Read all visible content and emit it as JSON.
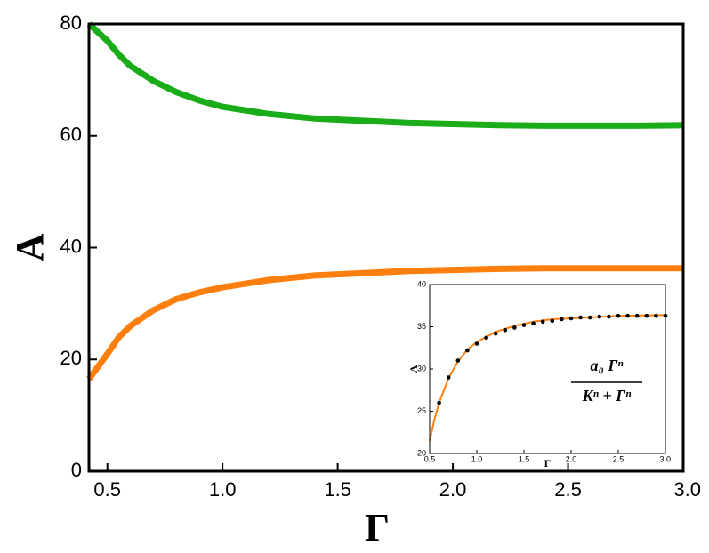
{
  "chart_data": [
    {
      "type": "line",
      "xlabel": "Γ",
      "ylabel": "A",
      "xlim": [
        0.42,
        3.0
      ],
      "ylim": [
        0,
        80
      ],
      "xticks": [
        0.5,
        {
          "value": 1,
          "label": "1.0"
        },
        1.5,
        {
          "value": 2,
          "label": "2.0"
        },
        2.5,
        {
          "value": 3,
          "label": "3.0"
        }
      ],
      "yticks": [
        0,
        20,
        40,
        60,
        80
      ],
      "series": [
        {
          "color": "#1aad19",
          "x": [
            0.42,
            0.5,
            0.55,
            0.6,
            0.7,
            0.8,
            0.9,
            1.0,
            1.2,
            1.4,
            1.6,
            1.8,
            2.0,
            2.2,
            2.4,
            2.6,
            2.8,
            3.0
          ],
          "values": [
            80,
            77,
            74.5,
            72.5,
            69.8,
            67.8,
            66.3,
            65.2,
            63.9,
            63.1,
            62.7,
            62.3,
            62.1,
            61.9,
            61.8,
            61.8,
            61.8,
            61.9
          ]
        },
        {
          "color": "#ff7f0e",
          "x": [
            0.42,
            0.5,
            0.55,
            0.6,
            0.7,
            0.8,
            0.9,
            1.0,
            1.2,
            1.4,
            1.6,
            1.8,
            2.0,
            2.2,
            2.4,
            2.6,
            2.8,
            3.0
          ],
          "values": [
            16.5,
            21,
            24,
            26,
            28.8,
            30.8,
            32,
            32.9,
            34.2,
            35,
            35.4,
            35.8,
            36,
            36.2,
            36.3,
            36.3,
            36.3,
            36.3
          ]
        }
      ]
    },
    {
      "type": "line",
      "xlabel": "Γ",
      "ylabel": "A",
      "xlim": [
        0.5,
        3.0
      ],
      "ylim": [
        20,
        40
      ],
      "xticks": [
        0.5,
        {
          "value": 1,
          "label": "1.0"
        },
        1.5,
        {
          "value": 2,
          "label": "2.0"
        },
        2.5,
        {
          "value": 3,
          "label": "3.0"
        }
      ],
      "yticks": [
        20,
        25,
        30,
        35,
        40
      ],
      "annotation": {
        "numerator": "a₀ Γⁿ",
        "denominator": "Kⁿ + Γⁿ"
      },
      "series": [
        {
          "color": "#ff7f0e",
          "x": [
            0.5,
            0.55,
            0.6,
            0.7,
            0.8,
            0.9,
            1.0,
            1.2,
            1.4,
            1.6,
            1.8,
            2.0,
            2.5,
            3.0
          ],
          "values": [
            21.5,
            24,
            26,
            28.9,
            30.9,
            32.3,
            33.2,
            34.4,
            35.1,
            35.6,
            35.9,
            36,
            36.3,
            36.4
          ]
        },
        {
          "color": "#000000",
          "mode": "markers",
          "x": [
            0.6,
            0.7,
            0.8,
            0.9,
            1.0,
            1.1,
            1.2,
            1.3,
            1.4,
            1.5,
            1.6,
            1.7,
            1.8,
            1.9,
            2.0,
            2.1,
            2.2,
            2.3,
            2.4,
            2.5,
            2.6,
            2.7,
            2.8,
            2.9,
            3.0
          ],
          "values": [
            26,
            29,
            31,
            32.2,
            33,
            33.7,
            34.2,
            34.6,
            34.9,
            35.2,
            35.4,
            35.6,
            35.7,
            35.9,
            36,
            36.1,
            36.1,
            36.2,
            36.2,
            36.3,
            36.3,
            36.3,
            36.3,
            36.3,
            36.3
          ]
        }
      ]
    }
  ]
}
